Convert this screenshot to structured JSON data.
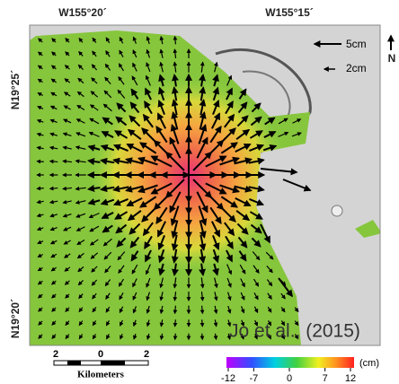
{
  "map": {
    "longitude_labels": [
      "W155°20´",
      "W155°15´"
    ],
    "latitude_labels": [
      "N19°25´",
      "N19°20´"
    ],
    "north": "N",
    "vector_legend": [
      "5cm",
      "2cm"
    ],
    "credit": "Jo et al., (2015)",
    "scale_bar": {
      "labels": [
        "2",
        "0",
        "2"
      ],
      "unit": "Kilometers"
    },
    "colorbar": {
      "range": [
        -12,
        12
      ],
      "ticks": [
        -12,
        -7,
        0,
        7,
        12
      ],
      "unit": "(cm)"
    }
  }
}
